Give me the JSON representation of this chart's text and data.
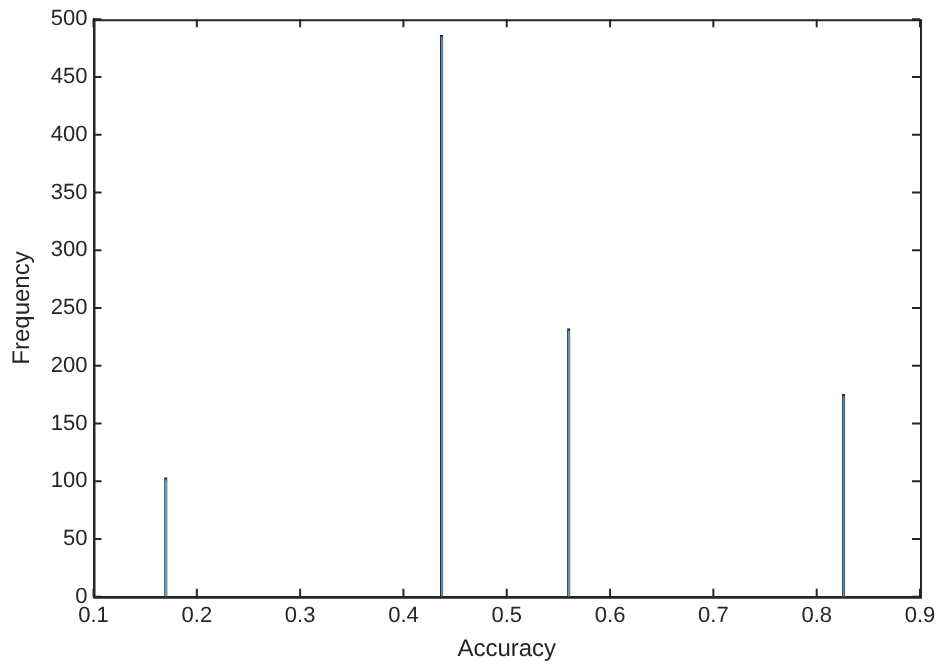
{
  "chart_data": {
    "type": "histogram",
    "xlabel": "Accuracy",
    "ylabel": "Frequency",
    "bins": [
      0.1675,
      0.1725,
      0.4345,
      0.4395,
      0.5575,
      0.5625,
      0.8235,
      0.8285
    ],
    "values": [
      103,
      0,
      486,
      0,
      232,
      0,
      175
    ],
    "color": "#5a8fbf",
    "xlim": [
      0.1,
      0.9
    ],
    "xticks": [
      0.1,
      0.2,
      0.3,
      0.4,
      0.5,
      0.6,
      0.7,
      0.8,
      0.9
    ],
    "ylim": [
      0,
      500
    ],
    "yticks": [
      0,
      50,
      100,
      150,
      200,
      250,
      300,
      350,
      400,
      450,
      500
    ],
    "grid": false
  }
}
